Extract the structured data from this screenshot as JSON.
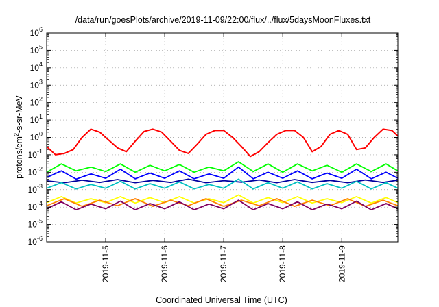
{
  "chart_data": {
    "type": "line",
    "title": "/data/run/goesPlots/archive/2019-11-09/22:00/flux/../flux/5daysMoonFluxes.txt",
    "xlabel": "Coordinated Universal Time (UTC)",
    "ylabel": {
      "prefix": "protons/cm",
      "sup": "2",
      "suffix": "-s-sr-MeV"
    },
    "yscale": "log",
    "ylim": [
      1e-06,
      1000000.0
    ],
    "xlim": [
      4.0,
      9.95
    ],
    "grid": true,
    "x_tick_labels": [
      "2019-11-5",
      "2019-11-6",
      "2019-11-7",
      "2019-11-8",
      "2019-11-9"
    ],
    "y_tick_labels": [
      {
        "base": "10",
        "exp": "-6"
      },
      {
        "base": "10",
        "exp": "-5"
      },
      {
        "base": "10",
        "exp": "-4"
      },
      {
        "base": "10",
        "exp": "-3"
      },
      {
        "base": "10",
        "exp": "-2"
      },
      {
        "base": "10",
        "exp": "-1"
      },
      {
        "base": "10",
        "exp": "0"
      },
      {
        "base": "10",
        "exp": "1"
      },
      {
        "base": "10",
        "exp": "2"
      },
      {
        "base": "10",
        "exp": "3"
      },
      {
        "base": "10",
        "exp": "4"
      },
      {
        "base": "10",
        "exp": "5"
      },
      {
        "base": "10",
        "exp": "6"
      }
    ],
    "series": [
      {
        "color": "#ff0000",
        "x": [
          4.0,
          4.15,
          4.3,
          4.45,
          4.6,
          4.75,
          4.9,
          5.05,
          5.2,
          5.35,
          5.5,
          5.65,
          5.8,
          5.95,
          6.1,
          6.25,
          6.4,
          6.55,
          6.7,
          6.85,
          7.0,
          7.15,
          7.3,
          7.45,
          7.6,
          7.75,
          7.9,
          8.05,
          8.2,
          8.35,
          8.5,
          8.65,
          8.8,
          8.95,
          9.1,
          9.25,
          9.4,
          9.55,
          9.7,
          9.85,
          9.95
        ],
        "y": [
          0.3,
          0.1,
          0.12,
          0.2,
          1.0,
          3.0,
          2.0,
          0.7,
          0.25,
          0.15,
          0.6,
          2.2,
          3.0,
          2.0,
          0.6,
          0.18,
          0.12,
          0.4,
          1.5,
          2.5,
          2.5,
          1.0,
          0.3,
          0.08,
          0.15,
          0.5,
          1.5,
          2.5,
          2.5,
          1.0,
          0.15,
          0.3,
          1.5,
          2.5,
          1.5,
          0.2,
          0.25,
          1.0,
          3.0,
          2.5,
          1.2
        ]
      },
      {
        "color": "#00ff00",
        "x": [
          4.0,
          4.25,
          4.5,
          4.75,
          5.0,
          5.25,
          5.5,
          5.75,
          6.0,
          6.25,
          6.5,
          6.75,
          7.0,
          7.25,
          7.5,
          7.75,
          8.0,
          8.25,
          8.5,
          8.75,
          9.0,
          9.25,
          9.5,
          9.75,
          9.95
        ],
        "y": [
          0.01,
          0.03,
          0.012,
          0.02,
          0.011,
          0.03,
          0.01,
          0.025,
          0.012,
          0.028,
          0.01,
          0.02,
          0.012,
          0.04,
          0.011,
          0.03,
          0.01,
          0.03,
          0.012,
          0.025,
          0.01,
          0.03,
          0.011,
          0.03,
          0.012
        ]
      },
      {
        "color": "#0000ff",
        "x": [
          4.0,
          4.25,
          4.5,
          4.75,
          5.0,
          5.25,
          5.5,
          5.75,
          6.0,
          6.25,
          6.5,
          6.75,
          7.0,
          7.25,
          7.5,
          7.75,
          8.0,
          8.25,
          8.5,
          8.75,
          9.0,
          9.25,
          9.5,
          9.75,
          9.95
        ],
        "y": [
          0.005,
          0.012,
          0.004,
          0.008,
          0.0045,
          0.015,
          0.0042,
          0.009,
          0.0045,
          0.012,
          0.0042,
          0.008,
          0.0045,
          0.02,
          0.0042,
          0.01,
          0.0045,
          0.012,
          0.0042,
          0.009,
          0.0045,
          0.015,
          0.0042,
          0.01,
          0.0045
        ]
      },
      {
        "color": "#0000a0",
        "x": [
          4.0,
          4.3,
          4.6,
          4.9,
          5.2,
          5.5,
          5.8,
          6.1,
          6.4,
          6.7,
          7.0,
          7.3,
          7.6,
          7.9,
          8.2,
          8.5,
          8.8,
          9.1,
          9.4,
          9.7,
          9.95
        ],
        "y": [
          0.0032,
          0.0025,
          0.0035,
          0.0026,
          0.0038,
          0.0025,
          0.0034,
          0.0026,
          0.004,
          0.0025,
          0.0033,
          0.0027,
          0.0036,
          0.0025,
          0.0038,
          0.0026,
          0.0034,
          0.0025,
          0.0036,
          0.0026,
          0.0035
        ]
      },
      {
        "color": "#00c0c0",
        "x": [
          4.0,
          4.25,
          4.5,
          4.75,
          5.0,
          5.25,
          5.5,
          5.75,
          6.0,
          6.25,
          6.5,
          6.75,
          7.0,
          7.25,
          7.5,
          7.75,
          8.0,
          8.25,
          8.5,
          8.75,
          9.0,
          9.25,
          9.5,
          9.75,
          9.95
        ],
        "y": [
          0.0012,
          0.0025,
          0.0011,
          0.002,
          0.0012,
          0.003,
          0.0011,
          0.0022,
          0.0012,
          0.0028,
          0.0011,
          0.002,
          0.0012,
          0.004,
          0.0011,
          0.0025,
          0.0012,
          0.0028,
          0.0011,
          0.0022,
          0.0012,
          0.003,
          0.0011,
          0.0025,
          0.0012
        ]
      },
      {
        "color": "#ffff00",
        "x": [
          4.0,
          4.25,
          4.5,
          4.75,
          5.0,
          5.25,
          5.5,
          5.75,
          6.0,
          6.25,
          6.5,
          6.75,
          7.0,
          7.25,
          7.5,
          7.75,
          8.0,
          8.25,
          8.5,
          8.75,
          9.0,
          9.25,
          9.5,
          9.75,
          9.95
        ],
        "y": [
          0.00018,
          0.0004,
          0.00017,
          0.0003,
          0.00018,
          0.0004,
          0.00017,
          0.00035,
          0.00018,
          0.0004,
          0.00017,
          0.0003,
          0.00018,
          0.0005,
          0.00017,
          0.00035,
          0.00018,
          0.0004,
          0.00017,
          0.0003,
          0.00018,
          0.0004,
          0.00017,
          0.00035,
          0.00018
        ]
      },
      {
        "color": "#ff8000",
        "x": [
          4.0,
          4.3,
          4.6,
          4.9,
          5.2,
          5.5,
          5.8,
          6.1,
          6.4,
          6.7,
          7.0,
          7.3,
          7.6,
          7.9,
          8.2,
          8.5,
          8.8,
          9.1,
          9.4,
          9.7,
          9.95
        ],
        "y": [
          0.00012,
          0.0003,
          0.00011,
          0.00025,
          0.00012,
          0.0003,
          0.00011,
          0.00025,
          0.00012,
          0.0003,
          0.00011,
          0.00025,
          0.00012,
          0.0003,
          0.00011,
          0.00025,
          0.00012,
          0.0003,
          0.00011,
          0.00025,
          0.00012
        ]
      },
      {
        "color": "#800060",
        "x": [
          4.0,
          4.25,
          4.5,
          4.75,
          5.0,
          5.25,
          5.5,
          5.75,
          6.0,
          6.25,
          6.5,
          6.75,
          7.0,
          7.25,
          7.5,
          7.75,
          8.0,
          8.25,
          8.5,
          8.75,
          9.0,
          9.25,
          9.5,
          9.75,
          9.95
        ],
        "y": [
          8e-05,
          0.0002,
          7e-05,
          0.00015,
          8e-05,
          0.00022,
          7e-05,
          0.00016,
          8e-05,
          0.0002,
          7e-05,
          0.00015,
          8e-05,
          0.00025,
          7e-05,
          0.00016,
          8e-05,
          0.0002,
          7e-05,
          0.00015,
          8e-05,
          0.00022,
          7e-05,
          0.00016,
          8e-05
        ]
      }
    ]
  }
}
